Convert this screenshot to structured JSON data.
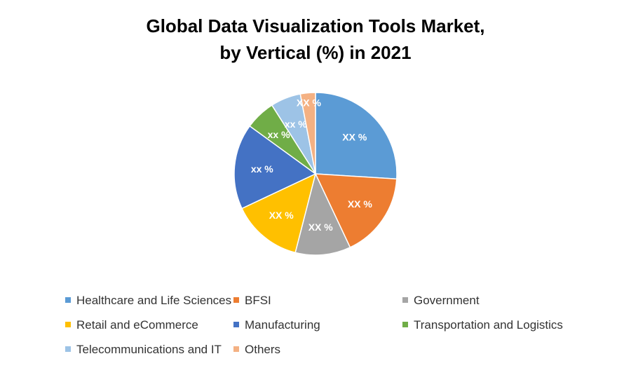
{
  "chart_data": {
    "type": "pie",
    "title_lines": [
      "Global Data Visualization Tools Market,",
      "by Vertical (%) in 2021"
    ],
    "categories": [
      "Healthcare and Life Sciences",
      "BFSI",
      "Government",
      "Retail and eCommerce",
      "Manufacturing",
      "Transportation and Logistics",
      "Telecommunications and IT",
      "Others"
    ],
    "values": [
      26,
      17,
      11,
      14,
      17,
      6,
      6,
      3
    ],
    "data_labels": [
      "XX %",
      "XX %",
      "XX %",
      "XX %",
      "xx %",
      "xx %",
      "xx %",
      "XX %"
    ],
    "colors": [
      "#5b9bd5",
      "#ed7d31",
      "#a5a5a5",
      "#ffc000",
      "#4472c4",
      "#70ad47",
      "#9dc3e6",
      "#f4b183"
    ],
    "legend_position": "bottom"
  }
}
